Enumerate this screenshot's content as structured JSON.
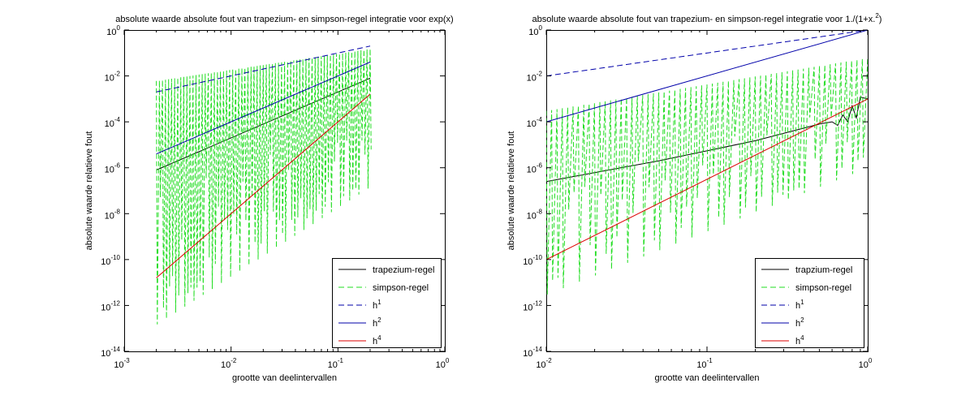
{
  "chart_data": [
    {
      "type": "line",
      "title": "absolute waarde absolute fout van trapezium- en simpson-regel integratie voor exp(x)",
      "xlabel": "grootte van deelintervallen",
      "ylabel": "absolute waarde relatieve fout",
      "x_scale": "log",
      "y_scale": "log",
      "xlim": [
        0.001,
        1
      ],
      "ylim": [
        1e-14,
        1
      ],
      "grid": false,
      "legend_position": "bottom-right",
      "x_ticks": [
        {
          "value": 0.001,
          "base": "10",
          "exp": "-3"
        },
        {
          "value": 0.01,
          "base": "10",
          "exp": "-2"
        },
        {
          "value": 0.1,
          "base": "10",
          "exp": "-1"
        },
        {
          "value": 1,
          "base": "10",
          "exp": "0"
        }
      ],
      "y_ticks": [
        {
          "value": 1e-14,
          "base": "10",
          "exp": "-14"
        },
        {
          "value": 1e-12,
          "base": "10",
          "exp": "-12"
        },
        {
          "value": 1e-10,
          "base": "10",
          "exp": "-10"
        },
        {
          "value": 1e-08,
          "base": "10",
          "exp": "-8"
        },
        {
          "value": 1e-06,
          "base": "10",
          "exp": "-6"
        },
        {
          "value": 0.0001,
          "base": "10",
          "exp": "-4"
        },
        {
          "value": 0.01,
          "base": "10",
          "exp": "-2"
        },
        {
          "value": 1,
          "base": "10",
          "exp": "0"
        }
      ],
      "series": [
        {
          "name": "trapezium-regel",
          "label_sup": "",
          "color": "#000000",
          "dash": "solid",
          "x": [
            0.002,
            0.2
          ],
          "y": [
            8e-07,
            0.008
          ]
        },
        {
          "name": "simpson-regel",
          "label_sup": "",
          "color": "#22dd22",
          "dash": "dashed",
          "x": [
            0.002,
            0.2
          ],
          "y_upper": [
            0.006,
            0.15
          ],
          "y_lower": [
            1.5e-13,
            1.5e-07
          ],
          "samples": 70
        },
        {
          "name": "h",
          "label_sup": "1",
          "color": "#0000aa",
          "dash": "dashed",
          "x": [
            0.002,
            0.2
          ],
          "y": [
            0.002,
            0.2
          ]
        },
        {
          "name": "h",
          "label_sup": "2",
          "color": "#0000aa",
          "dash": "solid",
          "x": [
            0.002,
            0.2
          ],
          "y": [
            4e-06,
            0.04
          ]
        },
        {
          "name": "h",
          "label_sup": "4",
          "color": "#dd0000",
          "dash": "solid",
          "x": [
            0.002,
            0.2
          ],
          "y": [
            1.6e-11,
            0.0016
          ]
        }
      ]
    },
    {
      "type": "line",
      "title": "absolute waarde absolute fout van trapezium- en simpson-regel integratie voor 1./(1+x.",
      "title_sup": "2",
      "title_tail": ")",
      "xlabel": "grootte van deelintervallen",
      "ylabel": "absolute waarde relatieve fout",
      "x_scale": "log",
      "y_scale": "log",
      "xlim": [
        0.01,
        1
      ],
      "ylim": [
        1e-14,
        1
      ],
      "grid": false,
      "legend_position": "bottom-right",
      "x_ticks": [
        {
          "value": 0.01,
          "base": "10",
          "exp": "-2"
        },
        {
          "value": 0.1,
          "base": "10",
          "exp": "-1"
        },
        {
          "value": 1,
          "base": "10",
          "exp": "0"
        }
      ],
      "y_ticks": [
        {
          "value": 1e-14,
          "base": "10",
          "exp": "-14"
        },
        {
          "value": 1e-12,
          "base": "10",
          "exp": "-12"
        },
        {
          "value": 1e-10,
          "base": "10",
          "exp": "-10"
        },
        {
          "value": 1e-08,
          "base": "10",
          "exp": "-8"
        },
        {
          "value": 1e-06,
          "base": "10",
          "exp": "-6"
        },
        {
          "value": 0.0001,
          "base": "10",
          "exp": "-4"
        },
        {
          "value": 0.01,
          "base": "10",
          "exp": "-2"
        },
        {
          "value": 1,
          "base": "10",
          "exp": "0"
        }
      ],
      "series": [
        {
          "name": "trapzium-regel",
          "label_sup": "",
          "color": "#000000",
          "dash": "solid",
          "x": [
            0.01,
            0.05,
            0.2,
            0.5,
            0.6,
            0.65,
            0.7,
            0.75,
            0.8,
            0.85,
            0.9,
            1.0
          ],
          "y": [
            2.5e-07,
            2e-06,
            1.5e-05,
            8e-05,
            0.0001,
            7e-05,
            0.0002,
            0.0001,
            0.0005,
            0.00015,
            0.0012,
            0.001
          ]
        },
        {
          "name": "simpson-regel",
          "label_sup": "",
          "color": "#22dd22",
          "dash": "dashed",
          "x": [
            0.01,
            1.0
          ],
          "y_upper": [
            0.0003,
            0.06
          ],
          "y_lower": [
            3e-12,
            1e-06
          ],
          "samples": 60
        },
        {
          "name": "h",
          "label_sup": "1",
          "color": "#0000aa",
          "dash": "dashed",
          "x": [
            0.01,
            1.0
          ],
          "y": [
            0.01,
            1.0
          ]
        },
        {
          "name": "h",
          "label_sup": "2",
          "color": "#0000aa",
          "dash": "solid",
          "x": [
            0.01,
            1.0
          ],
          "y": [
            0.0001,
            1.0
          ]
        },
        {
          "name": "h",
          "label_sup": "4",
          "color": "#dd0000",
          "dash": "solid",
          "x": [
            0.01,
            1.0
          ],
          "y": [
            1e-10,
            0.001
          ]
        }
      ]
    }
  ]
}
